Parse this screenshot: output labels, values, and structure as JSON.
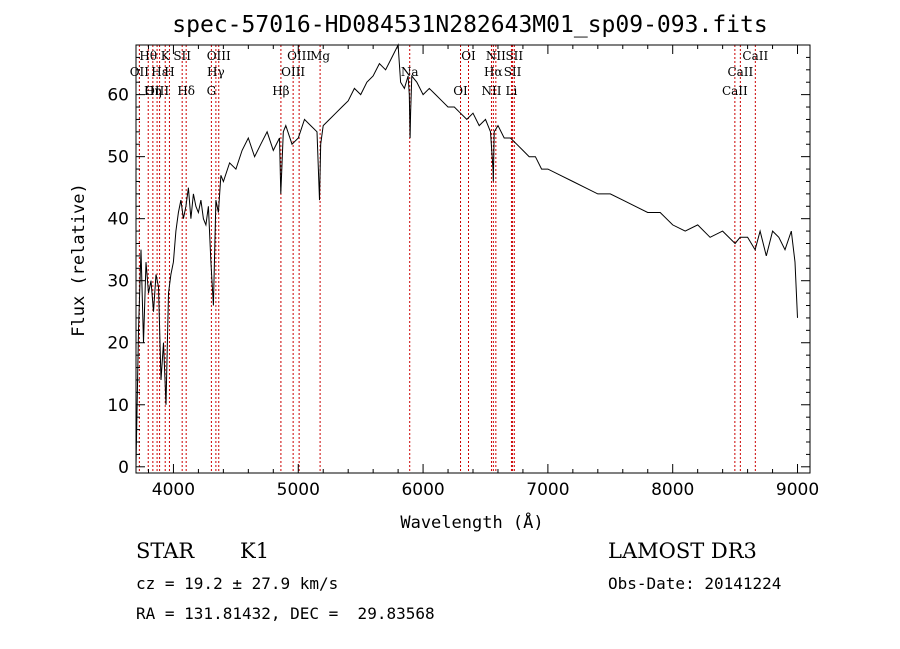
{
  "chart_data": {
    "type": "line",
    "title": "spec-57016-HD084531N282643M01_sp09-093.fits",
    "xlabel": "Wavelength (Å)",
    "ylabel": "Flux (relative)",
    "xlim": [
      3700,
      9100
    ],
    "ylim": [
      -1,
      68
    ],
    "xticks": [
      4000,
      5000,
      6000,
      7000,
      8000,
      9000
    ],
    "yticks": [
      0,
      10,
      20,
      30,
      40,
      50,
      60
    ],
    "grid": false,
    "series": [
      {
        "name": "spectrum",
        "x": [
          3700,
          3720,
          3740,
          3760,
          3780,
          3800,
          3820,
          3840,
          3860,
          3880,
          3900,
          3920,
          3940,
          3960,
          3980,
          4000,
          4020,
          4040,
          4060,
          4080,
          4100,
          4120,
          4140,
          4160,
          4180,
          4200,
          4220,
          4240,
          4260,
          4280,
          4300,
          4320,
          4340,
          4360,
          4380,
          4400,
          4450,
          4500,
          4550,
          4600,
          4650,
          4700,
          4750,
          4800,
          4850,
          4860,
          4880,
          4900,
          4950,
          5000,
          5050,
          5100,
          5150,
          5170,
          5180,
          5200,
          5250,
          5300,
          5350,
          5400,
          5450,
          5500,
          5550,
          5600,
          5650,
          5700,
          5750,
          5800,
          5820,
          5850,
          5880,
          5890,
          5896,
          5900,
          5910,
          5950,
          6000,
          6050,
          6100,
          6150,
          6200,
          6250,
          6300,
          6350,
          6400,
          6450,
          6500,
          6540,
          6560,
          6563,
          6570,
          6600,
          6650,
          6700,
          6750,
          6800,
          6850,
          6900,
          6950,
          7000,
          7100,
          7200,
          7300,
          7400,
          7500,
          7600,
          7700,
          7800,
          7900,
          8000,
          8100,
          8200,
          8300,
          8400,
          8500,
          8540,
          8600,
          8660,
          8700,
          8750,
          8800,
          8850,
          8900,
          8950,
          8980,
          9000
        ],
        "values": [
          0,
          22,
          35,
          20,
          33,
          28,
          30,
          25,
          31,
          29,
          14,
          20,
          10,
          28,
          31,
          33,
          38,
          41,
          43,
          40,
          42,
          45,
          40,
          44,
          42,
          41,
          43,
          40,
          39,
          42,
          33,
          26,
          43,
          41,
          47,
          46,
          49,
          48,
          51,
          53,
          50,
          52,
          54,
          51,
          53,
          44,
          54,
          55,
          52,
          53,
          56,
          55,
          54,
          43,
          52,
          55,
          56,
          57,
          58,
          59,
          61,
          60,
          62,
          63,
          65,
          64,
          66,
          68,
          62,
          61,
          63,
          60,
          53,
          57,
          63,
          62,
          60,
          61,
          60,
          59,
          58,
          58,
          57,
          56,
          57,
          55,
          56,
          54,
          48,
          46,
          54,
          55,
          53,
          53,
          52,
          51,
          50,
          50,
          48,
          48,
          47,
          46,
          45,
          44,
          44,
          43,
          42,
          41,
          41,
          39,
          38,
          39,
          37,
          38,
          36,
          37,
          37,
          35,
          38,
          34,
          38,
          37,
          35,
          38,
          33,
          24
        ]
      }
    ],
    "line_markers": [
      {
        "label": "Hθ",
        "x": 3798
      },
      {
        "label": "OII",
        "x": 3727
      },
      {
        "label": "OIII",
        "x": 3869
      },
      {
        "label": "K",
        "x": 3934
      },
      {
        "label": "Hε",
        "x": 3889
      },
      {
        "label": "Hη",
        "x": 3835
      },
      {
        "label": "SII",
        "x": 4070
      },
      {
        "label": "H",
        "x": 3968
      },
      {
        "label": "Hδ",
        "x": 4102
      },
      {
        "label": "OIII",
        "x": 4363
      },
      {
        "label": "Hγ",
        "x": 4340
      },
      {
        "label": "G",
        "x": 4304
      },
      {
        "label": "OIII",
        "x": 5007
      },
      {
        "label": "OIII",
        "x": 4959
      },
      {
        "label": "Hβ",
        "x": 4861
      },
      {
        "label": "Mg",
        "x": 5175
      },
      {
        "label": "Na",
        "x": 5893
      },
      {
        "label": "OI",
        "x": 6300
      },
      {
        "label": "OI",
        "x": 6364
      },
      {
        "label": "Hα",
        "x": 6563
      },
      {
        "label": "NII",
        "x": 6548
      },
      {
        "label": "NII",
        "x": 6583
      },
      {
        "label": "SII",
        "x": 6717
      },
      {
        "label": "Li",
        "x": 6708
      },
      {
        "label": "SII",
        "x": 6731
      },
      {
        "label": "CaII",
        "x": 8542
      },
      {
        "label": "CaII",
        "x": 8498
      },
      {
        "label": "CaII",
        "x": 8662
      }
    ]
  },
  "info": {
    "class": "STAR",
    "subclass": "K1",
    "survey": "LAMOST DR3",
    "cz": "cz = 19.2 ± 27.9 km/s",
    "obs_date": "Obs-Date: 20141224",
    "coords": "RA = 131.81432, DEC =  29.83568"
  },
  "colors": {
    "spectrum": "#000000",
    "marker": "#cc0000",
    "axis": "#000000"
  }
}
